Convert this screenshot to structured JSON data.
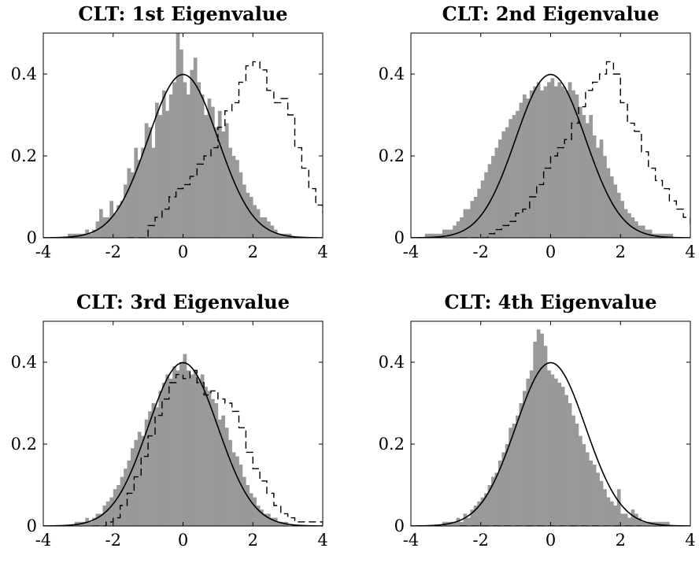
{
  "chart_data": [
    {
      "type": "bar",
      "title": "CLT: 1st Eigenvalue",
      "xlabel": "",
      "ylabel": "",
      "xlim": [
        -4,
        4
      ],
      "ylim": [
        0,
        0.5
      ],
      "xticks": [
        "-4",
        "-2",
        "0",
        "2",
        "4"
      ],
      "yticks": [
        "0",
        "0.2",
        "0.4"
      ],
      "grid": false,
      "bin_start": -3.3,
      "bin_width": 0.1,
      "histogram": [
        0.01,
        0.01,
        0.01,
        0.01,
        0.01,
        0.02,
        0.01,
        0.02,
        0.04,
        0.07,
        0.05,
        0.05,
        0.09,
        0.06,
        0.08,
        0.09,
        0.13,
        0.17,
        0.16,
        0.22,
        0.19,
        0.22,
        0.28,
        0.27,
        0.22,
        0.33,
        0.3,
        0.36,
        0.31,
        0.35,
        0.38,
        0.5,
        0.46,
        0.38,
        0.35,
        0.41,
        0.44,
        0.38,
        0.35,
        0.3,
        0.34,
        0.32,
        0.27,
        0.31,
        0.26,
        0.28,
        0.22,
        0.2,
        0.19,
        0.16,
        0.13,
        0.11,
        0.1,
        0.08,
        0.07,
        0.05,
        0.05,
        0.04,
        0.03,
        0.02,
        0.01,
        0.01,
        0.01,
        0.01
      ],
      "dashed_steps": {
        "x": [
          -1.6,
          -1.0,
          -0.8,
          -0.6,
          -0.4,
          -0.2,
          0.0,
          0.2,
          0.4,
          0.6,
          0.8,
          1.0,
          1.2,
          1.4,
          1.6,
          1.8,
          2.0,
          2.2,
          2.4,
          2.6,
          2.8,
          3.0,
          3.2,
          3.4,
          3.6,
          3.8,
          4.0
        ],
        "y": [
          0.0,
          0.03,
          0.05,
          0.07,
          0.1,
          0.12,
          0.13,
          0.15,
          0.18,
          0.2,
          0.22,
          0.27,
          0.31,
          0.33,
          0.38,
          0.42,
          0.43,
          0.41,
          0.36,
          0.33,
          0.34,
          0.3,
          0.22,
          0.17,
          0.12,
          0.08,
          0.06
        ]
      },
      "normal_curve": "N(0,1) density"
    },
    {
      "type": "bar",
      "title": "CLT: 2nd Eigenvalue",
      "xlabel": "",
      "ylabel": "",
      "xlim": [
        -4,
        4
      ],
      "ylim": [
        0,
        0.5
      ],
      "xticks": [
        "-4",
        "-2",
        "0",
        "2",
        "4"
      ],
      "yticks": [
        "0",
        "0.2",
        "0.4"
      ],
      "grid": false,
      "bin_start": -3.6,
      "bin_width": 0.1,
      "histogram": [
        0.01,
        0.01,
        0.01,
        0.01,
        0.01,
        0.02,
        0.02,
        0.02,
        0.03,
        0.04,
        0.05,
        0.07,
        0.07,
        0.09,
        0.1,
        0.12,
        0.14,
        0.16,
        0.18,
        0.2,
        0.22,
        0.24,
        0.26,
        0.27,
        0.29,
        0.3,
        0.31,
        0.33,
        0.35,
        0.34,
        0.36,
        0.37,
        0.38,
        0.36,
        0.37,
        0.38,
        0.39,
        0.37,
        0.38,
        0.37,
        0.36,
        0.38,
        0.36,
        0.35,
        0.32,
        0.3,
        0.28,
        0.3,
        0.25,
        0.22,
        0.24,
        0.2,
        0.17,
        0.15,
        0.13,
        0.11,
        0.09,
        0.07,
        0.06,
        0.05,
        0.04,
        0.03,
        0.03,
        0.02,
        0.02,
        0.01,
        0.01,
        0.01,
        0.01,
        0.01,
        0.01
      ],
      "dashed_steps": {
        "x": [
          -2.6,
          -1.8,
          -1.6,
          -1.4,
          -1.2,
          -1.0,
          -0.8,
          -0.6,
          -0.4,
          -0.2,
          0.0,
          0.2,
          0.4,
          0.6,
          0.8,
          1.0,
          1.2,
          1.4,
          1.6,
          1.8,
          2.0,
          2.2,
          2.4,
          2.6,
          2.8,
          3.0,
          3.2,
          3.4,
          3.6,
          3.8,
          4.0
        ],
        "y": [
          0.0,
          0.01,
          0.02,
          0.03,
          0.04,
          0.06,
          0.07,
          0.1,
          0.13,
          0.17,
          0.2,
          0.22,
          0.24,
          0.28,
          0.32,
          0.36,
          0.38,
          0.4,
          0.43,
          0.4,
          0.33,
          0.28,
          0.26,
          0.21,
          0.17,
          0.14,
          0.12,
          0.09,
          0.07,
          0.05,
          0.03
        ]
      },
      "normal_curve": "N(0,1) density"
    },
    {
      "type": "bar",
      "title": "CLT: 3rd Eigenvalue",
      "xlabel": "",
      "ylabel": "",
      "xlim": [
        -4,
        4
      ],
      "ylim": [
        0,
        0.5
      ],
      "xticks": [
        "-4",
        "-2",
        "0",
        "2",
        "4"
      ],
      "yticks": [
        "0",
        "0.2",
        "0.4"
      ],
      "grid": false,
      "bin_start": -3.1,
      "bin_width": 0.1,
      "histogram": [
        0.01,
        0.01,
        0.01,
        0.02,
        0.01,
        0.02,
        0.03,
        0.03,
        0.05,
        0.06,
        0.07,
        0.09,
        0.1,
        0.12,
        0.14,
        0.16,
        0.19,
        0.21,
        0.23,
        0.22,
        0.26,
        0.28,
        0.3,
        0.29,
        0.33,
        0.35,
        0.37,
        0.36,
        0.39,
        0.38,
        0.4,
        0.42,
        0.38,
        0.37,
        0.38,
        0.36,
        0.37,
        0.34,
        0.33,
        0.31,
        0.3,
        0.26,
        0.27,
        0.24,
        0.21,
        0.18,
        0.17,
        0.15,
        0.12,
        0.1,
        0.08,
        0.07,
        0.05,
        0.04,
        0.03,
        0.03,
        0.02,
        0.02,
        0.01,
        0.01,
        0.01
      ],
      "dashed_steps": {
        "x": [
          -2.6,
          -2.2,
          -2.0,
          -1.8,
          -1.6,
          -1.4,
          -1.2,
          -1.0,
          -0.8,
          -0.6,
          -0.4,
          -0.2,
          0.0,
          0.2,
          0.4,
          0.6,
          0.8,
          1.0,
          1.2,
          1.4,
          1.6,
          1.8,
          2.0,
          2.2,
          2.4,
          2.6,
          2.8,
          3.0,
          3.2,
          3.4,
          3.6,
          3.8,
          4.0
        ],
        "y": [
          0.0,
          0.01,
          0.02,
          0.05,
          0.08,
          0.12,
          0.17,
          0.22,
          0.27,
          0.31,
          0.35,
          0.37,
          0.36,
          0.38,
          0.35,
          0.32,
          0.33,
          0.31,
          0.3,
          0.28,
          0.24,
          0.18,
          0.14,
          0.11,
          0.08,
          0.05,
          0.03,
          0.02,
          0.01,
          0.01,
          0.01,
          0.01,
          0.0
        ]
      },
      "normal_curve": "N(0,1) density"
    },
    {
      "type": "bar",
      "title": "CLT: 4th Eigenvalue",
      "xlabel": "",
      "ylabel": "",
      "xlim": [
        -4,
        4
      ],
      "ylim": [
        0,
        0.5
      ],
      "xticks": [
        "-4",
        "-2",
        "0",
        "2",
        "4"
      ],
      "yticks": [
        "0",
        "0.2",
        "0.4"
      ],
      "grid": false,
      "bin_start": -3.1,
      "bin_width": 0.1,
      "histogram": [
        0.01,
        0.01,
        0.01,
        0.01,
        0.02,
        0.01,
        0.03,
        0.02,
        0.04,
        0.05,
        0.06,
        0.07,
        0.08,
        0.1,
        0.12,
        0.13,
        0.16,
        0.18,
        0.2,
        0.24,
        0.25,
        0.27,
        0.3,
        0.33,
        0.36,
        0.38,
        0.45,
        0.48,
        0.47,
        0.44,
        0.38,
        0.37,
        0.36,
        0.35,
        0.34,
        0.32,
        0.3,
        0.27,
        0.25,
        0.22,
        0.2,
        0.18,
        0.16,
        0.15,
        0.13,
        0.11,
        0.09,
        0.07,
        0.06,
        0.05,
        0.09,
        0.03,
        0.03,
        0.02,
        0.04,
        0.03,
        0.02,
        0.01,
        0.01,
        0.01,
        0.01,
        0.01,
        0.01,
        0.01,
        0.01
      ],
      "dashed_steps": {
        "x": [
          -2.6,
          2.6
        ],
        "y": [
          0.0,
          0.0
        ]
      },
      "normal_curve": "N(0,1) density"
    }
  ],
  "colors": {
    "bar": "#999999",
    "curve": "#000000",
    "dashed": "#000000",
    "axes": "#000000"
  }
}
